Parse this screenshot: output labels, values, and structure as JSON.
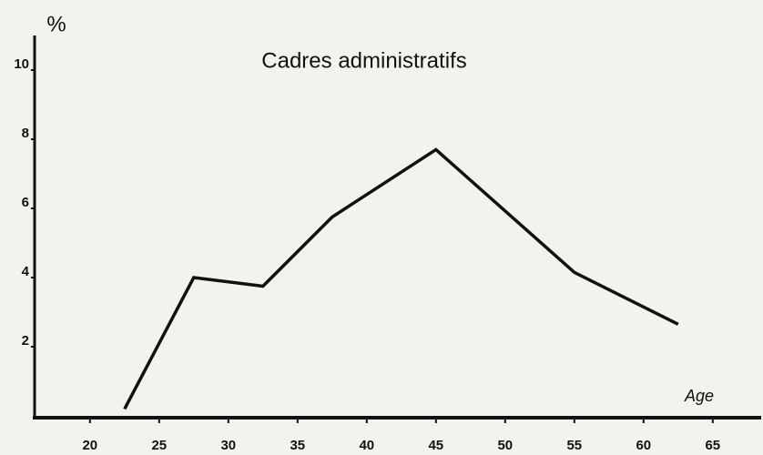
{
  "chart_data": {
    "type": "line",
    "title": "Cadres administratifs",
    "y_label": "%",
    "x_label": "Age",
    "x": [
      22.5,
      27.5,
      32.5,
      37.5,
      45,
      55,
      62.5
    ],
    "series": [
      {
        "name": "Cadres administratifs",
        "color": "#111111",
        "values": [
          0.2,
          4.0,
          3.75,
          5.75,
          7.7,
          4.15,
          2.65
        ]
      }
    ],
    "xlim": [
      16,
      68.5
    ],
    "xticks": [
      20,
      25,
      30,
      35,
      40,
      45,
      50,
      55,
      60,
      65
    ],
    "ylim": [
      0,
      11
    ],
    "yticks": [
      2,
      4,
      6,
      8,
      10
    ],
    "grid": false
  }
}
